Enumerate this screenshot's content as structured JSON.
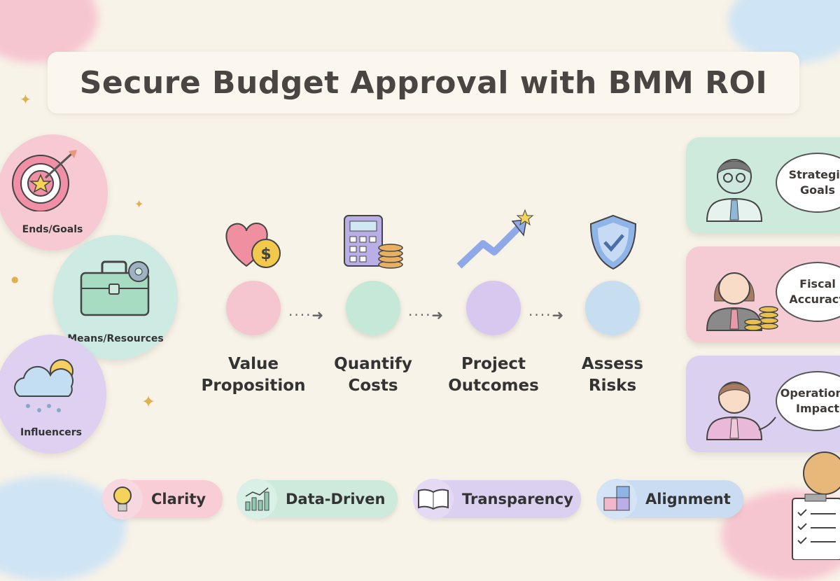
{
  "title": "Secure Budget Approval with BMM ROI",
  "bmm_elements": [
    {
      "label": "Ends/Goals",
      "icon": "target-icon",
      "color": "#f6c9d3"
    },
    {
      "label": "Means/Resources",
      "icon": "toolbox-icon",
      "color": "#cdeae3"
    },
    {
      "label": "Influencers",
      "icon": "weather-icon",
      "color": "#ddd0f0"
    }
  ],
  "steps": [
    {
      "label_line1": "Value",
      "label_line2": "Proposition",
      "icon": "heart-dollar-icon",
      "color": "#f5c6cf"
    },
    {
      "label_line1": "Quantify",
      "label_line2": "Costs",
      "icon": "calculator-icon",
      "color": "#c6e8d8"
    },
    {
      "label_line1": "Project",
      "label_line2": "Outcomes",
      "icon": "growth-arrow-icon",
      "color": "#d6c8ef"
    },
    {
      "label_line1": "Assess",
      "label_line2": "Risks",
      "icon": "shield-icon",
      "color": "#c6def0"
    }
  ],
  "stakeholders": [
    {
      "line1": "Strategic",
      "line2": "Goals",
      "icon": "executive-icon",
      "color": "#cdeadc"
    },
    {
      "line1": "Fiscal",
      "line2": "Accuracy",
      "icon": "finance-icon",
      "color": "#f6ccd4"
    },
    {
      "line1": "Operational",
      "line2": "Impact",
      "icon": "operations-icon",
      "color": "#dcd0f0"
    }
  ],
  "values": [
    {
      "label": "Clarity",
      "icon": "lightbulb-icon",
      "color": "#f8cdd6"
    },
    {
      "label": "Data-Driven",
      "icon": "bar-chart-icon",
      "color": "#cdeadc"
    },
    {
      "label": "Transparency",
      "icon": "book-icon",
      "color": "#dcd0f0"
    },
    {
      "label": "Alignment",
      "icon": "puzzle-icon",
      "color": "#c9dcf2"
    }
  ]
}
